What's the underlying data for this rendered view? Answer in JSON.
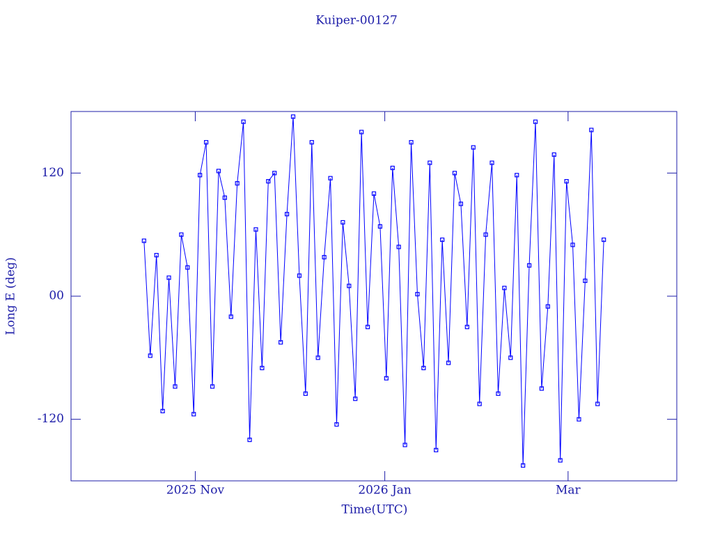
{
  "chart_data": {
    "type": "line",
    "title": "Kuiper-00127",
    "x_label": "Time(UTC)",
    "y_label": "Long E (deg)",
    "x": [
      23.5,
      25.5,
      27.5,
      29.5,
      31.5,
      33.5,
      35.5,
      37.5,
      39.5,
      41.5,
      43.5,
      45.5,
      47.5,
      49.5,
      51.5,
      53.5,
      55.5,
      57.5,
      59.5,
      61.5,
      63.5,
      65.5,
      67.5,
      69.5,
      71.5,
      73.5,
      75.5,
      77.5,
      79.5,
      81.5,
      83.5,
      85.5,
      87.5,
      89.5,
      91.5,
      93.5,
      95.5,
      97.5,
      99.5,
      101.5,
      103.5,
      105.5,
      107.5,
      109.5,
      111.5,
      113.5,
      115.5,
      117.5,
      119.5,
      121.5,
      123.5,
      125.5,
      127.5,
      129.5,
      131.5,
      133.5,
      135.5,
      137.5,
      139.5,
      141.5,
      143.5,
      145.5,
      147.5,
      149.5,
      151.5,
      153.5,
      155.5,
      157.5,
      159.5,
      161.5,
      163.5,
      165.5,
      167.5,
      169.5,
      171.5
    ],
    "series": [
      {
        "color": "#0000ff",
        "values": [
          54,
          -58,
          40,
          -112,
          18,
          -88,
          60,
          28,
          -115,
          118,
          150,
          -88,
          122,
          96,
          -20,
          110,
          170,
          -140,
          65,
          -70,
          112,
          120,
          -45,
          80,
          175,
          20,
          -95,
          150,
          -60,
          38,
          115,
          -125,
          72,
          10,
          -100,
          160,
          -30,
          100,
          68,
          -80,
          125,
          48,
          -145,
          150,
          2,
          -70,
          130,
          -150,
          55,
          -65,
          120,
          90,
          -30,
          145,
          -105,
          60,
          130,
          -95,
          8,
          -60,
          118,
          -165,
          30,
          170,
          -90,
          -10,
          138,
          -160,
          112,
          50,
          -120,
          15,
          162,
          -105,
          55
        ]
      }
    ],
    "xlim": [
      0,
      195
    ],
    "xticks": [
      {
        "value": 40,
        "label": "2025 Nov"
      },
      {
        "value": 101,
        "label": "2026 Jan"
      },
      {
        "value": 160,
        "label": "Mar"
      }
    ],
    "ylim": [
      -180,
      180
    ],
    "yticks": [
      -120,
      {
        "value": 0,
        "label": "00"
      },
      120
    ],
    "frame_color": "#1c1ca8"
  }
}
